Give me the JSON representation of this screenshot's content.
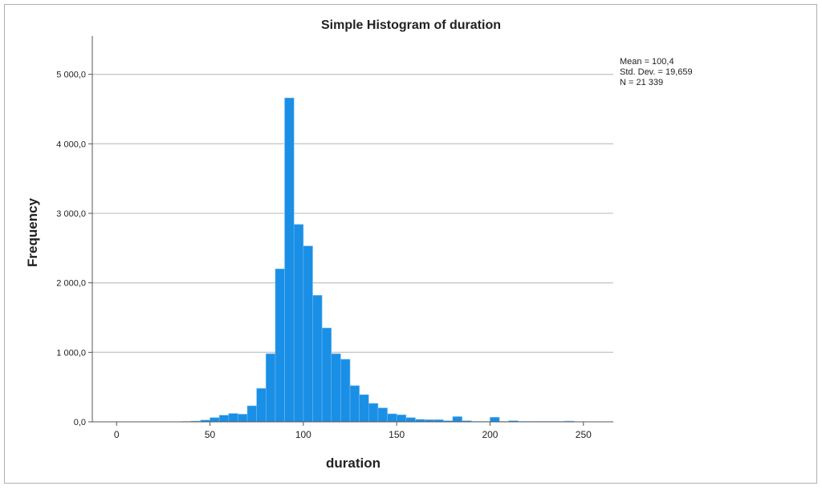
{
  "chart_data": {
    "type": "bar",
    "title": "Simple Histogram of duration",
    "xlabel": "duration",
    "ylabel": "Frequency",
    "xlim": [
      -13,
      266
    ],
    "ylim": [
      0,
      5550
    ],
    "grid": true,
    "bin_width": 5,
    "xticks": [
      0,
      50,
      100,
      150,
      200,
      250
    ],
    "xtick_labels": [
      "0",
      "50",
      "100",
      "150",
      "200",
      "250"
    ],
    "yticks": [
      0,
      1000,
      2000,
      3000,
      4000,
      5000
    ],
    "ytick_labels": [
      "0,0",
      "1 000,0",
      "2 000,0",
      "3 000,0",
      "4 000,0",
      "5 000,0"
    ],
    "bins": [
      [
        35,
        5
      ],
      [
        40,
        10
      ],
      [
        45,
        25
      ],
      [
        50,
        60
      ],
      [
        55,
        95
      ],
      [
        60,
        120
      ],
      [
        65,
        110
      ],
      [
        70,
        230
      ],
      [
        75,
        480
      ],
      [
        80,
        980
      ],
      [
        85,
        2200
      ],
      [
        90,
        4660
      ],
      [
        95,
        2840
      ],
      [
        100,
        2530
      ],
      [
        105,
        1820
      ],
      [
        110,
        1350
      ],
      [
        115,
        980
      ],
      [
        120,
        900
      ],
      [
        125,
        520
      ],
      [
        130,
        390
      ],
      [
        135,
        265
      ],
      [
        140,
        200
      ],
      [
        145,
        115
      ],
      [
        150,
        100
      ],
      [
        155,
        60
      ],
      [
        160,
        35
      ],
      [
        165,
        30
      ],
      [
        170,
        30
      ],
      [
        175,
        15
      ],
      [
        180,
        75
      ],
      [
        185,
        15
      ],
      [
        190,
        5
      ],
      [
        195,
        5
      ],
      [
        200,
        65
      ],
      [
        205,
        5
      ],
      [
        210,
        15
      ],
      [
        215,
        5
      ],
      [
        220,
        5
      ],
      [
        225,
        5
      ],
      [
        230,
        5
      ],
      [
        235,
        5
      ],
      [
        240,
        10
      ]
    ],
    "stats": [
      "Mean = 100,4",
      "Std. Dev. = 19,659",
      "N = 21 339"
    ],
    "bar_color": "#1a8fe6"
  }
}
